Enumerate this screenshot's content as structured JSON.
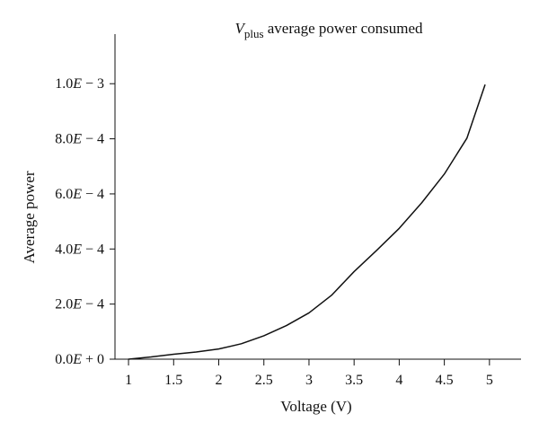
{
  "chart_data": {
    "type": "line",
    "title": {
      "main": "V",
      "subscript": "plus",
      "rest": " average power consumed"
    },
    "xlabel": "Voltage (V)",
    "ylabel": "Average power",
    "xlim": [
      0.85,
      5.35
    ],
    "ylim": [
      0,
      0.00118
    ],
    "x_ticks": [
      {
        "value": 1,
        "label": "1"
      },
      {
        "value": 1.5,
        "label": "1.5"
      },
      {
        "value": 2,
        "label": "2"
      },
      {
        "value": 2.5,
        "label": "2.5"
      },
      {
        "value": 3,
        "label": "3"
      },
      {
        "value": 3.5,
        "label": "3.5"
      },
      {
        "value": 4,
        "label": "4"
      },
      {
        "value": 4.5,
        "label": "4.5"
      },
      {
        "value": 5,
        "label": "5"
      }
    ],
    "y_ticks": [
      {
        "value": 0,
        "mantissa": "0.0",
        "exp_letter": "E",
        "suffix": " + 0"
      },
      {
        "value": 0.0002,
        "mantissa": "2.0",
        "exp_letter": "E",
        "suffix": " − 4"
      },
      {
        "value": 0.0004,
        "mantissa": "4.0",
        "exp_letter": "E",
        "suffix": " − 4"
      },
      {
        "value": 0.0006,
        "mantissa": "6.0",
        "exp_letter": "E",
        "suffix": " − 4"
      },
      {
        "value": 0.0008,
        "mantissa": "8.0",
        "exp_letter": "E",
        "suffix": " − 4"
      },
      {
        "value": 0.001,
        "mantissa": "1.0",
        "exp_letter": "E",
        "suffix": " − 3"
      }
    ],
    "series": [
      {
        "color": "#111111",
        "x": [
          1.0,
          1.25,
          1.5,
          1.75,
          2.0,
          2.25,
          2.5,
          2.75,
          3.0,
          3.25,
          3.5,
          3.75,
          4.0,
          4.25,
          4.5,
          4.75,
          4.95
        ],
        "y": [
          0.0,
          8e-06,
          1.8e-05,
          2.6e-05,
          3.7e-05,
          5.6e-05,
          8.5e-05,
          0.000122,
          0.000168,
          0.000232,
          0.000318,
          0.000395,
          0.000475,
          0.000568,
          0.000672,
          0.000802,
          0.000995
        ]
      }
    ],
    "grid": false,
    "legend": "none"
  }
}
